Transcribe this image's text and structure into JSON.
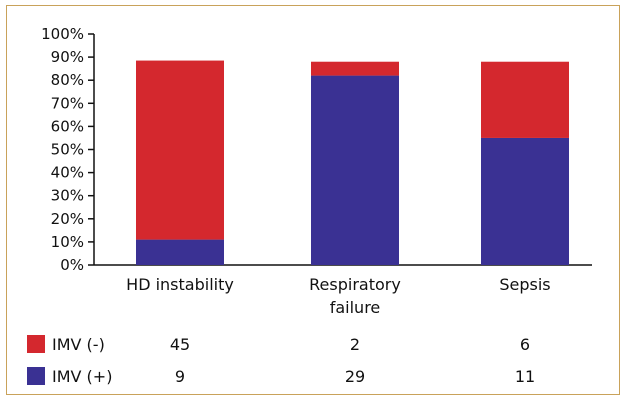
{
  "chart_data": {
    "type": "bar",
    "stacked": true,
    "categories": [
      "HD instability",
      "Respiratory failure",
      "Sepsis"
    ],
    "category_lines": [
      [
        "HD instability"
      ],
      [
        "Respiratory",
        "failure"
      ],
      [
        "Sepsis"
      ]
    ],
    "series": [
      {
        "name": "IMV (+)",
        "color": "#3a3193",
        "values": [
          11,
          82,
          55
        ],
        "counts": [
          "9",
          "29",
          "11"
        ]
      },
      {
        "name": "IMV (-)",
        "color": "#d4282e",
        "values": [
          77.5,
          6,
          33
        ],
        "counts": [
          "45",
          "2",
          "6"
        ]
      }
    ],
    "y_ticks": [
      "0%",
      "10%",
      "20%",
      "30%",
      "40%",
      "50%",
      "60%",
      "70%",
      "80%",
      "90%",
      "100%"
    ],
    "ylim": [
      0,
      100
    ],
    "grid": false,
    "legend": "table-below"
  }
}
